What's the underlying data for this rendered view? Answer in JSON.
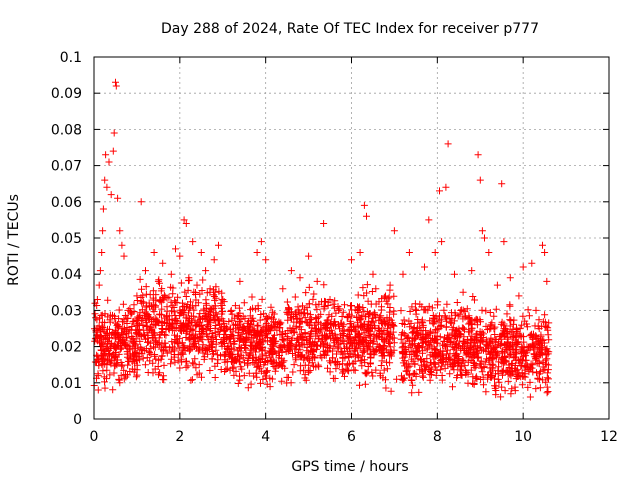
{
  "chart_data": {
    "type": "scatter",
    "title": "Day 288 of 2024, Rate Of TEC Index for receiver p777",
    "xlabel": "GPS time / hours",
    "ylabel": "ROTI / TECUs",
    "xlim": [
      0,
      12
    ],
    "ylim": [
      0,
      0.1
    ],
    "xticks": [
      "0",
      "2",
      "4",
      "6",
      "8",
      "10",
      "12"
    ],
    "yticks": [
      "0",
      "0.01",
      "0.02",
      "0.03",
      "0.04",
      "0.05",
      "0.06",
      "0.07",
      "0.08",
      "0.09",
      "0.1"
    ],
    "xtick_values": [
      0,
      2,
      4,
      6,
      8,
      10,
      12
    ],
    "ytick_values": [
      0,
      0.01,
      0.02,
      0.03,
      0.04,
      0.05,
      0.06,
      0.07,
      0.08,
      0.09,
      0.1
    ],
    "grid": true,
    "marker": "+",
    "color": "#ff0000",
    "series": [
      {
        "name": "ROTI",
        "points": [
          [
            0.05,
            0.024
          ],
          [
            0.08,
            0.033
          ],
          [
            0.1,
            0.012
          ],
          [
            0.12,
            0.037
          ],
          [
            0.15,
            0.041
          ],
          [
            0.18,
            0.046
          ],
          [
            0.2,
            0.052
          ],
          [
            0.22,
            0.058
          ],
          [
            0.25,
            0.066
          ],
          [
            0.27,
            0.073
          ],
          [
            0.3,
            0.064
          ],
          [
            0.35,
            0.071
          ],
          [
            0.4,
            0.062
          ],
          [
            0.45,
            0.074
          ],
          [
            0.47,
            0.079
          ],
          [
            0.5,
            0.093
          ],
          [
            0.52,
            0.092
          ],
          [
            0.55,
            0.061
          ],
          [
            0.6,
            0.052
          ],
          [
            0.65,
            0.048
          ],
          [
            0.7,
            0.045
          ],
          [
            0.1,
            0.008
          ],
          [
            0.3,
            0.015
          ],
          [
            0.5,
            0.02
          ],
          [
            0.6,
            0.01
          ],
          [
            0.8,
            0.03
          ],
          [
            0.9,
            0.018
          ],
          [
            1.0,
            0.034
          ],
          [
            1.1,
            0.06
          ],
          [
            1.2,
            0.041
          ],
          [
            1.3,
            0.028
          ],
          [
            1.4,
            0.046
          ],
          [
            1.5,
            0.038
          ],
          [
            1.6,
            0.043
          ],
          [
            1.7,
            0.031
          ],
          [
            1.8,
            0.04
          ],
          [
            1.9,
            0.047
          ],
          [
            2.0,
            0.045
          ],
          [
            2.1,
            0.055
          ],
          [
            2.15,
            0.054
          ],
          [
            2.3,
            0.049
          ],
          [
            2.4,
            0.037
          ],
          [
            2.5,
            0.046
          ],
          [
            2.6,
            0.041
          ],
          [
            2.7,
            0.035
          ],
          [
            2.8,
            0.044
          ],
          [
            2.9,
            0.048
          ],
          [
            3.0,
            0.033
          ],
          [
            3.2,
            0.03
          ],
          [
            3.4,
            0.038
          ],
          [
            3.6,
            0.027
          ],
          [
            3.8,
            0.046
          ],
          [
            3.9,
            0.049
          ],
          [
            4.0,
            0.044
          ],
          [
            4.2,
            0.029
          ],
          [
            4.4,
            0.036
          ],
          [
            4.6,
            0.041
          ],
          [
            4.8,
            0.039
          ],
          [
            5.0,
            0.045
          ],
          [
            5.2,
            0.038
          ],
          [
            5.35,
            0.054
          ],
          [
            5.5,
            0.033
          ],
          [
            5.7,
            0.03
          ],
          [
            5.9,
            0.028
          ],
          [
            6.0,
            0.044
          ],
          [
            6.2,
            0.046
          ],
          [
            6.3,
            0.059
          ],
          [
            6.35,
            0.056
          ],
          [
            6.5,
            0.04
          ],
          [
            6.7,
            0.031
          ],
          [
            6.9,
            0.037
          ],
          [
            7.0,
            0.052
          ],
          [
            7.05,
            0.011
          ],
          [
            7.2,
            0.04
          ],
          [
            7.35,
            0.046
          ],
          [
            7.5,
            0.024
          ],
          [
            7.7,
            0.042
          ],
          [
            7.8,
            0.055
          ],
          [
            7.95,
            0.046
          ],
          [
            8.05,
            0.063
          ],
          [
            8.1,
            0.049
          ],
          [
            8.2,
            0.064
          ],
          [
            8.25,
            0.076
          ],
          [
            8.4,
            0.04
          ],
          [
            8.6,
            0.035
          ],
          [
            8.8,
            0.041
          ],
          [
            8.95,
            0.073
          ],
          [
            9.0,
            0.066
          ],
          [
            9.05,
            0.052
          ],
          [
            9.1,
            0.05
          ],
          [
            9.2,
            0.046
          ],
          [
            9.4,
            0.037
          ],
          [
            9.5,
            0.065
          ],
          [
            9.55,
            0.049
          ],
          [
            9.7,
            0.039
          ],
          [
            9.9,
            0.034
          ],
          [
            10.0,
            0.042
          ],
          [
            10.2,
            0.043
          ],
          [
            10.3,
            0.03
          ],
          [
            10.45,
            0.048
          ],
          [
            10.5,
            0.046
          ],
          [
            10.55,
            0.038
          ]
        ],
        "bands": [
          {
            "x": [
              0.0,
              1.0
            ],
            "y": [
              0.006,
              0.03
            ]
          },
          {
            "x": [
              1.0,
              3.0
            ],
            "y": [
              0.008,
              0.035
            ]
          },
          {
            "x": [
              3.0,
              4.5
            ],
            "y": [
              0.005,
              0.03
            ]
          },
          {
            "x": [
              4.5,
              7.0
            ],
            "y": [
              0.006,
              0.033
            ]
          },
          {
            "x": [
              7.15,
              9.0
            ],
            "y": [
              0.004,
              0.03
            ]
          },
          {
            "x": [
              9.0,
              10.6
            ],
            "y": [
              0.003,
              0.028
            ]
          }
        ]
      }
    ]
  }
}
